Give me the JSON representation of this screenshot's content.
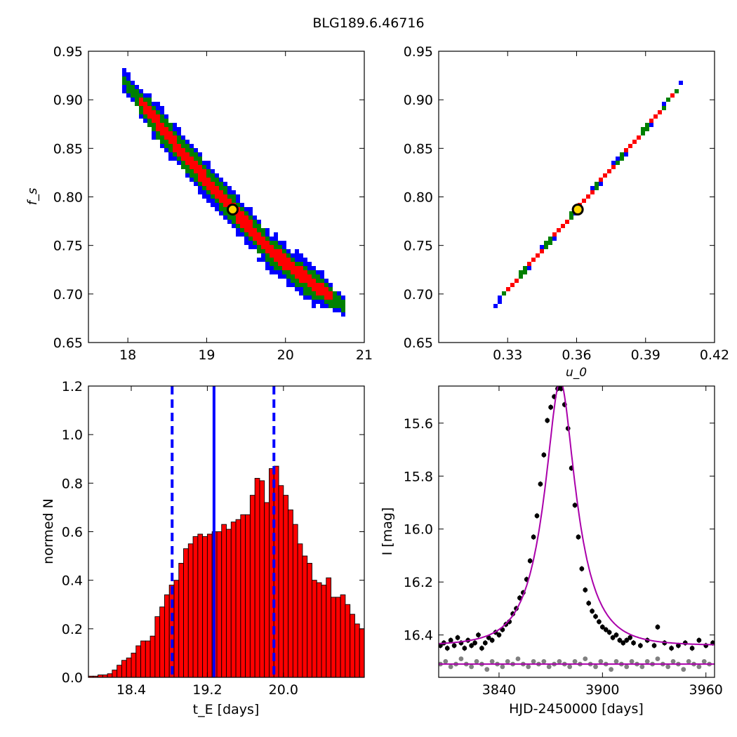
{
  "figure": {
    "title": "BLG189.6.46716"
  },
  "colors": {
    "contour_outer": "#0000ff",
    "contour_mid": "#008000",
    "contour_inner": "#ff0000",
    "marker_ring": "#000000",
    "marker_fill": "#ffd700",
    "histogram_bar": "#ff0000",
    "vline": "#0000ff",
    "model_line": "#aa00aa",
    "data_main": "#000000",
    "data_residual": "#808080"
  },
  "chart_data": [
    {
      "id": "tE-fs",
      "type": "heatmap",
      "title": "",
      "xlabel": "",
      "ylabel": "f_s",
      "xlim": [
        17.5,
        21
      ],
      "ylim": [
        0.65,
        0.95
      ],
      "xticks": [
        "18",
        "19",
        "20",
        "21"
      ],
      "yticks": [
        "0.65",
        "0.70",
        "0.75",
        "0.80",
        "0.85",
        "0.90",
        "0.95"
      ],
      "ridge": [
        [
          17.95,
          0.92
        ],
        [
          18.5,
          0.864
        ],
        [
          19.0,
          0.816
        ],
        [
          19.35,
          0.786
        ],
        [
          19.8,
          0.745
        ],
        [
          20.3,
          0.713
        ],
        [
          20.75,
          0.687
        ]
      ],
      "half_width_levels": {
        "blue": 0.02,
        "green": 0.014,
        "red": 0.007
      },
      "best_fit": {
        "x": 19.33,
        "y": 0.787
      },
      "grid": false
    },
    {
      "id": "u0-fs",
      "type": "heatmap",
      "title": "",
      "xlabel": "u_0",
      "ylabel": "",
      "xlim": [
        0.3,
        0.42
      ],
      "ylim": [
        0.65,
        0.95
      ],
      "xticks": [
        "0.33",
        "0.36",
        "0.39",
        "0.42"
      ],
      "yticks": [
        "0.65",
        "0.70",
        "0.75",
        "0.80",
        "0.85",
        "0.90",
        "0.95"
      ],
      "ridge": [
        [
          0.324,
          0.687
        ],
        [
          0.36,
          0.787
        ],
        [
          0.396,
          0.887
        ],
        [
          0.407,
          0.921
        ]
      ],
      "half_width_levels": {
        "blue": 0.0035,
        "green": 0.0025,
        "red": 0.0015
      },
      "best_fit": {
        "x": 0.3605,
        "y": 0.787
      },
      "grid": false
    },
    {
      "id": "tE-hist",
      "type": "bar",
      "title": "",
      "xlabel": "t_E [days]",
      "ylabel": "normed N",
      "xlim": [
        17.95,
        20.85
      ],
      "ylim": [
        0,
        1.2
      ],
      "xticks": [
        "18.4",
        "19.2",
        "20.0"
      ],
      "yticks": [
        "0.0",
        "0.2",
        "0.4",
        "0.6",
        "0.8",
        "1.0",
        "1.2"
      ],
      "bin_start": 17.95,
      "bin_width": 0.05,
      "values": [
        0.005,
        0.005,
        0.01,
        0.01,
        0.015,
        0.03,
        0.05,
        0.07,
        0.08,
        0.1,
        0.13,
        0.15,
        0.15,
        0.17,
        0.25,
        0.29,
        0.34,
        0.38,
        0.4,
        0.47,
        0.53,
        0.55,
        0.58,
        0.59,
        0.58,
        0.59,
        0.6,
        0.6,
        0.63,
        0.61,
        0.64,
        0.65,
        0.67,
        0.67,
        0.75,
        0.82,
        0.81,
        0.72,
        0.86,
        0.87,
        0.79,
        0.75,
        0.69,
        0.63,
        0.55,
        0.5,
        0.47,
        0.4,
        0.39,
        0.38,
        0.41,
        0.33,
        0.33,
        0.34,
        0.3,
        0.26,
        0.22,
        0.2,
        0.14,
        0.1,
        0.07,
        0.05,
        0.03,
        0.02,
        0.01,
        0.01,
        0.005,
        0.005
      ],
      "vlines": {
        "solid": 19.27,
        "dashed": [
          18.83,
          19.9
        ]
      },
      "grid": false
    },
    {
      "id": "lightcurve",
      "type": "scatter",
      "title": "",
      "xlabel": "HJD-2450000 [days]",
      "ylabel": "I [mag]",
      "xlim": [
        3805,
        3965
      ],
      "ylim": [
        16.56,
        15.46
      ],
      "y_inverted": true,
      "xticks": [
        "3840",
        "3900",
        "3960"
      ],
      "yticks": [
        "15.6",
        "15.8",
        "16.0",
        "16.2",
        "16.4"
      ],
      "model": {
        "t0": 3875.5,
        "tE": 19.3,
        "u0": 0.36,
        "fs": 0.787,
        "baseline": 16.44
      },
      "residual_level": 16.51,
      "data_points": [
        [
          3806,
          16.44
        ],
        [
          3808,
          16.43
        ],
        [
          3810,
          16.45
        ],
        [
          3812,
          16.42
        ],
        [
          3814,
          16.44
        ],
        [
          3816,
          16.41
        ],
        [
          3818,
          16.43
        ],
        [
          3820,
          16.45
        ],
        [
          3822,
          16.42
        ],
        [
          3824,
          16.44
        ],
        [
          3826,
          16.43
        ],
        [
          3828,
          16.4
        ],
        [
          3830,
          16.45
        ],
        [
          3832,
          16.43
        ],
        [
          3834,
          16.41
        ],
        [
          3836,
          16.42
        ],
        [
          3838,
          16.39
        ],
        [
          3840,
          16.4
        ],
        [
          3842,
          16.38
        ],
        [
          3844,
          16.36
        ],
        [
          3846,
          16.35
        ],
        [
          3848,
          16.32
        ],
        [
          3850,
          16.3
        ],
        [
          3852,
          16.26
        ],
        [
          3854,
          16.24
        ],
        [
          3856,
          16.19
        ],
        [
          3858,
          16.12
        ],
        [
          3860,
          16.03
        ],
        [
          3862,
          15.95
        ],
        [
          3864,
          15.83
        ],
        [
          3866,
          15.72
        ],
        [
          3868,
          15.59
        ],
        [
          3870,
          15.54
        ],
        [
          3872,
          15.5
        ],
        [
          3874,
          15.47
        ],
        [
          3875,
          15.46
        ],
        [
          3876,
          15.47
        ],
        [
          3878,
          15.53
        ],
        [
          3880,
          15.62
        ],
        [
          3882,
          15.77
        ],
        [
          3884,
          15.91
        ],
        [
          3886,
          16.03
        ],
        [
          3888,
          16.15
        ],
        [
          3890,
          16.23
        ],
        [
          3892,
          16.28
        ],
        [
          3894,
          16.31
        ],
        [
          3896,
          16.33
        ],
        [
          3898,
          16.35
        ],
        [
          3900,
          16.37
        ],
        [
          3902,
          16.38
        ],
        [
          3904,
          16.39
        ],
        [
          3906,
          16.41
        ],
        [
          3908,
          16.4
        ],
        [
          3910,
          16.42
        ],
        [
          3912,
          16.43
        ],
        [
          3914,
          16.42
        ],
        [
          3916,
          16.41
        ],
        [
          3918,
          16.43
        ],
        [
          3922,
          16.44
        ],
        [
          3926,
          16.42
        ],
        [
          3930,
          16.44
        ],
        [
          3932,
          16.37
        ],
        [
          3936,
          16.43
        ],
        [
          3940,
          16.45
        ],
        [
          3944,
          16.44
        ],
        [
          3948,
          16.43
        ],
        [
          3952,
          16.45
        ],
        [
          3956,
          16.42
        ],
        [
          3960,
          16.44
        ],
        [
          3964,
          16.43
        ]
      ],
      "residual_points": [
        [
          3806,
          16.51
        ],
        [
          3809,
          16.5
        ],
        [
          3812,
          16.52
        ],
        [
          3815,
          16.51
        ],
        [
          3818,
          16.49
        ],
        [
          3821,
          16.51
        ],
        [
          3824,
          16.52
        ],
        [
          3827,
          16.5
        ],
        [
          3830,
          16.51
        ],
        [
          3833,
          16.53
        ],
        [
          3836,
          16.5
        ],
        [
          3839,
          16.51
        ],
        [
          3842,
          16.52
        ],
        [
          3845,
          16.5
        ],
        [
          3848,
          16.51
        ],
        [
          3851,
          16.49
        ],
        [
          3854,
          16.51
        ],
        [
          3857,
          16.52
        ],
        [
          3860,
          16.5
        ],
        [
          3863,
          16.51
        ],
        [
          3866,
          16.5
        ],
        [
          3869,
          16.52
        ],
        [
          3872,
          16.51
        ],
        [
          3875,
          16.5
        ],
        [
          3878,
          16.51
        ],
        [
          3881,
          16.52
        ],
        [
          3884,
          16.5
        ],
        [
          3887,
          16.51
        ],
        [
          3890,
          16.49
        ],
        [
          3893,
          16.51
        ],
        [
          3896,
          16.52
        ],
        [
          3899,
          16.5
        ],
        [
          3902,
          16.51
        ],
        [
          3905,
          16.53
        ],
        [
          3908,
          16.5
        ],
        [
          3911,
          16.51
        ],
        [
          3914,
          16.52
        ],
        [
          3917,
          16.5
        ],
        [
          3920,
          16.51
        ],
        [
          3923,
          16.52
        ],
        [
          3926,
          16.5
        ],
        [
          3929,
          16.51
        ],
        [
          3932,
          16.49
        ],
        [
          3935,
          16.51
        ],
        [
          3938,
          16.52
        ],
        [
          3941,
          16.5
        ],
        [
          3944,
          16.51
        ],
        [
          3947,
          16.53
        ],
        [
          3950,
          16.5
        ],
        [
          3953,
          16.51
        ],
        [
          3956,
          16.52
        ],
        [
          3959,
          16.5
        ],
        [
          3962,
          16.51
        ]
      ]
    }
  ]
}
